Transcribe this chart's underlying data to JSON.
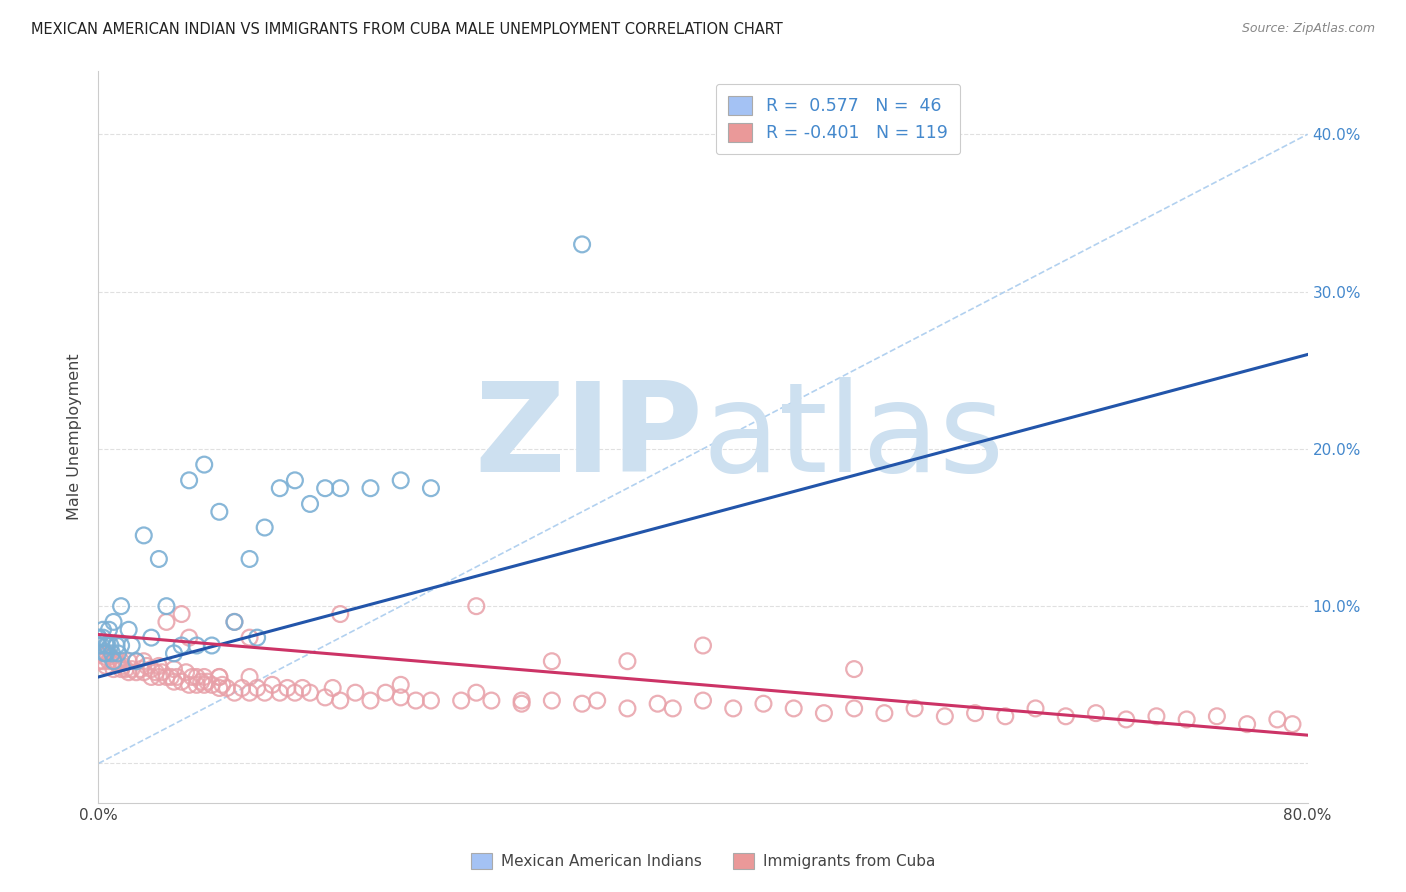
{
  "title": "MEXICAN AMERICAN INDIAN VS IMMIGRANTS FROM CUBA MALE UNEMPLOYMENT CORRELATION CHART",
  "source": "Source: ZipAtlas.com",
  "ylabel": "Male Unemployment",
  "xlim": [
    0.0,
    0.8
  ],
  "ylim": [
    -0.025,
    0.44
  ],
  "yticks": [
    0.0,
    0.1,
    0.2,
    0.3,
    0.4
  ],
  "xticks": [
    0.0,
    0.2,
    0.4,
    0.6,
    0.8
  ],
  "xtick_labels": [
    "0.0%",
    "",
    "",
    "",
    "80.0%"
  ],
  "right_ytick_labels": [
    "",
    "10.0%",
    "20.0%",
    "30.0%",
    "40.0%"
  ],
  "legend_line1": "R =  0.577   N =  46",
  "legend_line2": "R = -0.401   N = 119",
  "color_blue_scatter": "#7bafd4",
  "color_pink_scatter": "#e8a0a8",
  "color_blue_patch": "#a4c2f4",
  "color_pink_patch": "#ea9999",
  "color_blue_line": "#2255aa",
  "color_pink_line": "#cc3366",
  "color_diag": "#aaccee",
  "color_right_axis": "#4488cc",
  "color_legend_text": "#4488cc",
  "watermark_zip_color": "#cde0f0",
  "watermark_atlas_color": "#cde0f0",
  "grid_color": "#dddddd",
  "blue_x": [
    0.0,
    0.0,
    0.0,
    0.002,
    0.003,
    0.003,
    0.004,
    0.005,
    0.005,
    0.006,
    0.007,
    0.008,
    0.009,
    0.01,
    0.01,
    0.012,
    0.013,
    0.015,
    0.015,
    0.02,
    0.022,
    0.025,
    0.03,
    0.035,
    0.04,
    0.045,
    0.05,
    0.055,
    0.06,
    0.065,
    0.07,
    0.075,
    0.08,
    0.09,
    0.1,
    0.105,
    0.11,
    0.12,
    0.13,
    0.14,
    0.15,
    0.16,
    0.18,
    0.2,
    0.22,
    0.32
  ],
  "blue_y": [
    0.075,
    0.08,
    0.08,
    0.075,
    0.08,
    0.085,
    0.07,
    0.075,
    0.07,
    0.075,
    0.085,
    0.075,
    0.07,
    0.09,
    0.065,
    0.075,
    0.07,
    0.075,
    0.1,
    0.085,
    0.075,
    0.065,
    0.145,
    0.08,
    0.13,
    0.1,
    0.07,
    0.075,
    0.18,
    0.075,
    0.19,
    0.075,
    0.16,
    0.09,
    0.13,
    0.08,
    0.15,
    0.175,
    0.18,
    0.165,
    0.175,
    0.175,
    0.175,
    0.18,
    0.175,
    0.33
  ],
  "pink_x": [
    0.0,
    0.0,
    0.0,
    0.002,
    0.003,
    0.004,
    0.005,
    0.006,
    0.007,
    0.008,
    0.01,
    0.01,
    0.012,
    0.013,
    0.015,
    0.015,
    0.016,
    0.018,
    0.02,
    0.02,
    0.022,
    0.025,
    0.025,
    0.028,
    0.03,
    0.03,
    0.032,
    0.035,
    0.035,
    0.038,
    0.04,
    0.04,
    0.042,
    0.045,
    0.045,
    0.048,
    0.05,
    0.05,
    0.052,
    0.055,
    0.055,
    0.058,
    0.06,
    0.062,
    0.065,
    0.065,
    0.068,
    0.07,
    0.07,
    0.072,
    0.075,
    0.08,
    0.08,
    0.082,
    0.085,
    0.09,
    0.09,
    0.095,
    0.1,
    0.1,
    0.105,
    0.11,
    0.115,
    0.12,
    0.125,
    0.13,
    0.135,
    0.14,
    0.15,
    0.155,
    0.16,
    0.17,
    0.18,
    0.19,
    0.2,
    0.21,
    0.22,
    0.24,
    0.25,
    0.26,
    0.28,
    0.3,
    0.32,
    0.33,
    0.35,
    0.37,
    0.38,
    0.4,
    0.42,
    0.44,
    0.46,
    0.48,
    0.5,
    0.52,
    0.54,
    0.56,
    0.58,
    0.6,
    0.62,
    0.64,
    0.66,
    0.68,
    0.7,
    0.72,
    0.74,
    0.76,
    0.78,
    0.79,
    0.3,
    0.4,
    0.5,
    0.16,
    0.25,
    0.35,
    0.28,
    0.2,
    0.1,
    0.08,
    0.06
  ],
  "pink_y": [
    0.07,
    0.075,
    0.065,
    0.07,
    0.065,
    0.068,
    0.062,
    0.07,
    0.065,
    0.068,
    0.065,
    0.06,
    0.065,
    0.063,
    0.06,
    0.065,
    0.062,
    0.06,
    0.058,
    0.065,
    0.06,
    0.058,
    0.065,
    0.06,
    0.058,
    0.065,
    0.062,
    0.055,
    0.06,
    0.058,
    0.055,
    0.062,
    0.058,
    0.055,
    0.09,
    0.055,
    0.052,
    0.06,
    0.055,
    0.052,
    0.095,
    0.058,
    0.05,
    0.055,
    0.05,
    0.055,
    0.052,
    0.05,
    0.055,
    0.052,
    0.05,
    0.048,
    0.055,
    0.05,
    0.048,
    0.045,
    0.09,
    0.048,
    0.045,
    0.055,
    0.048,
    0.045,
    0.05,
    0.045,
    0.048,
    0.045,
    0.048,
    0.045,
    0.042,
    0.048,
    0.04,
    0.045,
    0.04,
    0.045,
    0.042,
    0.04,
    0.04,
    0.04,
    0.045,
    0.04,
    0.038,
    0.04,
    0.038,
    0.04,
    0.035,
    0.038,
    0.035,
    0.04,
    0.035,
    0.038,
    0.035,
    0.032,
    0.035,
    0.032,
    0.035,
    0.03,
    0.032,
    0.03,
    0.035,
    0.03,
    0.032,
    0.028,
    0.03,
    0.028,
    0.03,
    0.025,
    0.028,
    0.025,
    0.065,
    0.075,
    0.06,
    0.095,
    0.1,
    0.065,
    0.04,
    0.05,
    0.08,
    0.055,
    0.08
  ],
  "blue_line_x0": 0.0,
  "blue_line_x1": 0.8,
  "blue_line_y0": 0.055,
  "blue_line_y1": 0.26,
  "pink_line_x0": 0.0,
  "pink_line_x1": 0.8,
  "pink_line_y0": 0.082,
  "pink_line_y1": 0.018
}
